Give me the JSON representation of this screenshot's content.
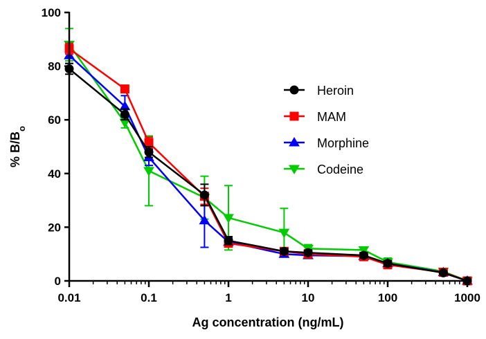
{
  "chart_data": {
    "type": "line",
    "title": "",
    "xlabel": "Ag concentration (ng/mL)",
    "ylabel_prefix": "% B/B",
    "ylabel_subscript": "o",
    "xscale": "log",
    "xlim": [
      0.01,
      1000
    ],
    "ylim": [
      0,
      100
    ],
    "x_ticks": [
      0.01,
      0.1,
      1,
      10,
      100,
      1000
    ],
    "x_tick_labels": [
      "0.01",
      "0.1",
      "1",
      "10",
      "100",
      "1000"
    ],
    "y_ticks": [
      0,
      20,
      40,
      60,
      80,
      100
    ],
    "y_tick_labels": [
      "0",
      "20",
      "40",
      "60",
      "80",
      "100"
    ],
    "grid": false,
    "legend_position": "center-right",
    "series": [
      {
        "name": "Heroin",
        "color": "#000000",
        "marker": "circle",
        "x": [
          0.01,
          0.05,
          0.1,
          0.5,
          1,
          5,
          10,
          50,
          100,
          500,
          1000
        ],
        "y": [
          79,
          62,
          48,
          32,
          15,
          11,
          10.5,
          9.5,
          6.5,
          3,
          0
        ],
        "err": [
          2,
          2,
          2,
          4,
          1.5,
          1,
          1,
          1,
          1,
          0.5,
          0.5
        ]
      },
      {
        "name": "MAM",
        "color": "#ff0000",
        "marker": "square",
        "x": [
          0.01,
          0.05,
          0.1,
          0.5,
          1,
          5,
          10,
          50,
          100,
          500,
          1000
        ],
        "y": [
          86.5,
          71.5,
          51.5,
          31.5,
          14,
          11,
          10,
          9,
          6,
          3.2,
          0
        ],
        "err": [
          2,
          1,
          2,
          3,
          1,
          1,
          1,
          1,
          1,
          0.5,
          0.5
        ]
      },
      {
        "name": "Morphine",
        "color": "#0000ff",
        "marker": "triangle",
        "x": [
          0.01,
          0.05,
          0.1,
          0.5,
          1,
          5,
          10,
          50,
          100,
          500,
          1000
        ],
        "y": [
          84,
          65,
          46,
          22.5,
          14.5,
          10,
          9.5,
          9.2,
          6.5,
          3.2,
          0
        ],
        "err": [
          3,
          4,
          3,
          10,
          1.5,
          1,
          1,
          1,
          1,
          0.5,
          0.5
        ]
      },
      {
        "name": "Codeine",
        "color": "#00cc00",
        "marker": "triangle-down",
        "x": [
          0.01,
          0.05,
          0.1,
          0.5,
          1,
          5,
          10,
          50,
          100,
          500,
          1000
        ],
        "y": [
          88,
          59,
          41,
          31,
          23.5,
          18,
          12,
          11.5,
          7,
          3.5,
          0
        ],
        "err": [
          6,
          2,
          13,
          8,
          12,
          9,
          1.5,
          1,
          1.5,
          0.5,
          0.5
        ]
      }
    ]
  }
}
